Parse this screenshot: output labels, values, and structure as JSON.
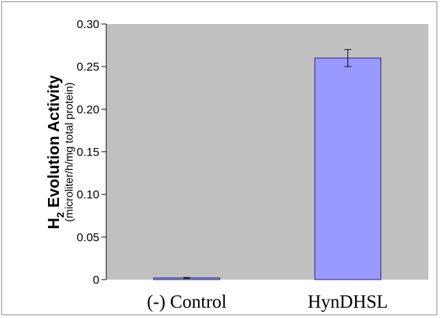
{
  "chart_data": {
    "type": "bar",
    "categories": [
      "(-) Control",
      "HynDHSL"
    ],
    "values": [
      0.002,
      0.26
    ],
    "error": [
      0.0005,
      0.01
    ],
    "ylabel": {
      "base": "H",
      "subscript": "2",
      "main": " Evolution Activity",
      "units": "(microliter/h/mg total protein)"
    },
    "yticks": [
      "0",
      "0.05",
      "0.10",
      "0.15",
      "0.20",
      "0.25",
      "0.30"
    ],
    "ylim": [
      0,
      0.3
    ],
    "grid": false,
    "colors": {
      "plot_background": "#c0c0c0",
      "bar_fill": "#9999ff",
      "bar_stroke": "#1c1c6e"
    }
  }
}
